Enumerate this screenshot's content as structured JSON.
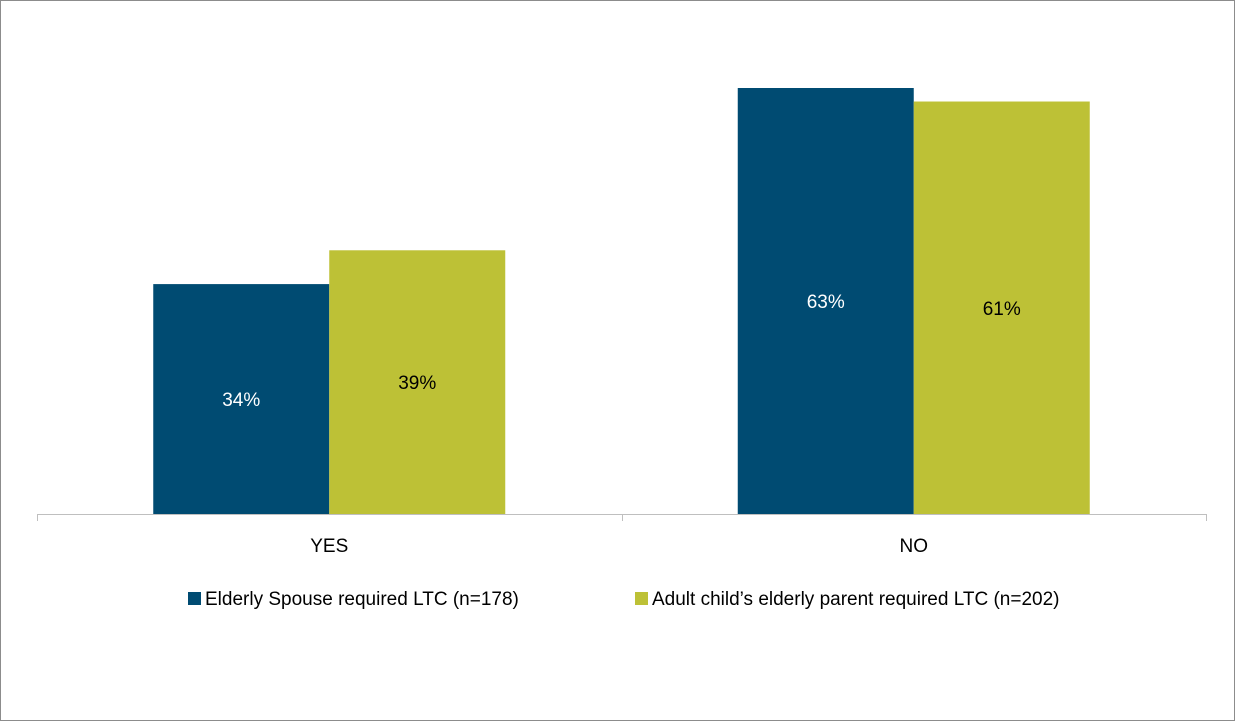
{
  "chart_data": {
    "type": "bar",
    "categories": [
      "YES",
      "NO"
    ],
    "series": [
      {
        "name": "Elderly Spouse required LTC (n=178)",
        "values": [
          34,
          63
        ],
        "labels": [
          "34%",
          "63%"
        ],
        "color": "#004b72",
        "label_color": "#ffffff"
      },
      {
        "name": "Adult child’s elderly parent required LTC (n=202)",
        "values": [
          39,
          61
        ],
        "labels": [
          "39%",
          "61%"
        ],
        "color": "#bdc136",
        "label_color": "#000000"
      }
    ],
    "title": "",
    "xlabel": "",
    "ylabel": "",
    "ylim": [
      0,
      65
    ],
    "grid": false,
    "legend_position": "bottom",
    "axis_color": "#bfbfbf"
  }
}
